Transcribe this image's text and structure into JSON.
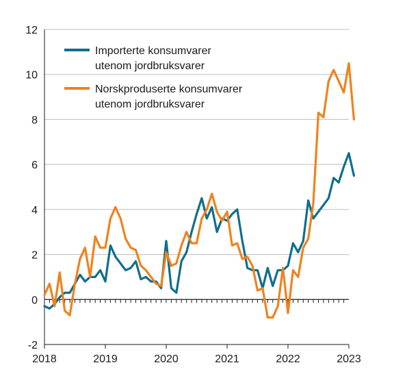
{
  "chart_data": {
    "type": "line",
    "title": "",
    "xlabel": "",
    "ylabel": "",
    "ylim": [
      -2,
      12
    ],
    "yticks": [
      -2,
      0,
      2,
      4,
      6,
      8,
      10,
      12
    ],
    "ytick_labels": [
      "-2",
      "0",
      "2",
      "4",
      "6",
      "8",
      "10",
      "12"
    ],
    "xlim": [
      "2018-01",
      "2023-01"
    ],
    "xtick_labels": [
      "2018",
      "2019",
      "2020",
      "2021",
      "2022",
      "2023"
    ],
    "grid": "horizontal",
    "legend": "top-left",
    "series": [
      {
        "name": "Importerte konsumvarer utenom jordbruksvarer",
        "color": "#0f6e8c",
        "values": [
          -0.3,
          -0.4,
          -0.2,
          0.1,
          0.3,
          0.3,
          0.7,
          1.1,
          0.8,
          1.0,
          1.0,
          1.3,
          0.8,
          2.4,
          1.9,
          1.6,
          1.3,
          1.4,
          1.7,
          0.9,
          1.0,
          0.8,
          0.8,
          0.5,
          2.6,
          0.5,
          0.3,
          1.7,
          2.1,
          3.0,
          3.8,
          4.5,
          3.6,
          4.1,
          3.0,
          3.6,
          3.5,
          3.8,
          4.0,
          2.6,
          1.4,
          1.3,
          1.3,
          0.5,
          1.4,
          0.6,
          1.3,
          1.3,
          1.5,
          2.5,
          2.1,
          2.6,
          4.4,
          3.6,
          3.9,
          4.2,
          4.5,
          5.4,
          5.2,
          5.9,
          6.5,
          5.5
        ]
      },
      {
        "name": "Norskproduserte konsumvarer utenom jordbruksvarer",
        "color": "#f0821e",
        "values": [
          0.2,
          0.7,
          -0.3,
          1.2,
          -0.5,
          -0.7,
          0.7,
          1.8,
          2.3,
          1.0,
          2.8,
          2.3,
          2.3,
          3.6,
          4.1,
          3.6,
          2.7,
          2.3,
          2.2,
          1.5,
          1.3,
          1.0,
          0.7,
          0.6,
          2.1,
          1.5,
          1.6,
          2.4,
          3.0,
          2.5,
          2.5,
          3.6,
          4.0,
          4.7,
          3.9,
          3.5,
          3.9,
          2.4,
          2.5,
          1.8,
          1.9,
          1.5,
          0.4,
          0.5,
          -0.8,
          -0.8,
          -0.3,
          1.4,
          -0.6,
          1.3,
          1.0,
          2.3,
          2.7,
          4.3,
          8.3,
          8.1,
          9.7,
          10.2,
          9.7,
          9.2,
          10.5,
          8.0
        ]
      }
    ]
  }
}
